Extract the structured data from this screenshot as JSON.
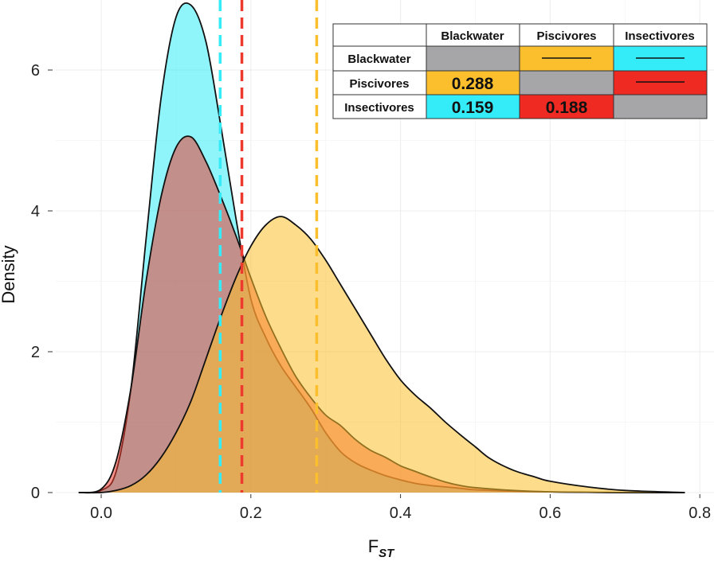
{
  "chart_data": {
    "type": "area",
    "xlabel_main": "F",
    "xlabel_sub": "ST",
    "ylabel": "Density",
    "xlim": [
      -0.04,
      0.8
    ],
    "ylim": [
      0,
      7
    ],
    "xticks": [
      0.0,
      0.2,
      0.4,
      0.6,
      0.8
    ],
    "xtick_labels": [
      "0.0",
      "0.2",
      "0.4",
      "0.6",
      "0.8"
    ],
    "yticks": [
      0,
      2,
      4,
      6
    ],
    "ytick_labels": [
      "0",
      "2",
      "4",
      "6"
    ],
    "grid": true,
    "series": [
      {
        "name": "Blackwater-Insectivores",
        "color": "#33ecf7",
        "mean": 0.159,
        "x": [
          -0.03,
          0.0,
          0.02,
          0.04,
          0.06,
          0.08,
          0.1,
          0.12,
          0.14,
          0.16,
          0.18,
          0.2,
          0.22,
          0.24,
          0.26,
          0.28,
          0.3,
          0.32,
          0.34,
          0.36,
          0.38,
          0.4,
          0.42,
          0.44,
          0.46,
          0.48,
          0.5,
          0.55,
          0.6,
          0.65,
          0.7,
          0.78
        ],
        "y": [
          0.0,
          0.03,
          0.3,
          1.5,
          3.6,
          5.6,
          6.75,
          6.92,
          6.4,
          5.2,
          3.9,
          2.75,
          2.2,
          1.8,
          1.5,
          1.2,
          0.85,
          0.58,
          0.42,
          0.32,
          0.24,
          0.18,
          0.13,
          0.1,
          0.08,
          0.06,
          0.04,
          0.02,
          0.01,
          0.005,
          0.0,
          0.0
        ]
      },
      {
        "name": "Piscivores-Insectivores",
        "color": "#ee3a2e",
        "mean": 0.188,
        "x": [
          -0.03,
          0.0,
          0.02,
          0.04,
          0.06,
          0.08,
          0.1,
          0.12,
          0.14,
          0.16,
          0.18,
          0.2,
          0.22,
          0.24,
          0.26,
          0.28,
          0.3,
          0.32,
          0.34,
          0.36,
          0.38,
          0.4,
          0.42,
          0.44,
          0.46,
          0.48,
          0.5,
          0.55,
          0.6,
          0.65,
          0.7,
          0.78
        ],
        "y": [
          0.0,
          0.05,
          0.45,
          1.5,
          3.0,
          4.2,
          4.9,
          5.05,
          4.7,
          4.2,
          3.65,
          3.05,
          2.5,
          2.05,
          1.65,
          1.35,
          1.1,
          0.95,
          0.75,
          0.6,
          0.5,
          0.38,
          0.3,
          0.22,
          0.15,
          0.1,
          0.07,
          0.03,
          0.01,
          0.005,
          0.0,
          0.0
        ]
      },
      {
        "name": "Blackwater-Piscivores",
        "color": "#fbbf2e",
        "mean": 0.288,
        "x": [
          -0.03,
          0.0,
          0.02,
          0.04,
          0.06,
          0.08,
          0.1,
          0.12,
          0.14,
          0.16,
          0.18,
          0.2,
          0.22,
          0.24,
          0.26,
          0.28,
          0.3,
          0.32,
          0.34,
          0.36,
          0.38,
          0.4,
          0.42,
          0.44,
          0.46,
          0.48,
          0.5,
          0.52,
          0.55,
          0.58,
          0.6,
          0.65,
          0.7,
          0.78
        ],
        "y": [
          0.0,
          0.0,
          0.03,
          0.1,
          0.25,
          0.5,
          0.85,
          1.3,
          1.9,
          2.5,
          3.05,
          3.5,
          3.8,
          3.92,
          3.8,
          3.6,
          3.3,
          2.95,
          2.6,
          2.25,
          1.9,
          1.6,
          1.38,
          1.2,
          1.0,
          0.82,
          0.65,
          0.48,
          0.32,
          0.22,
          0.16,
          0.08,
          0.03,
          0.0
        ]
      }
    ],
    "vlines": [
      {
        "x": 0.159,
        "color": "#33ecf7"
      },
      {
        "x": 0.188,
        "color": "#ee3a2e"
      },
      {
        "x": 0.288,
        "color": "#fbbf2e"
      }
    ],
    "inset_table": {
      "columns": [
        "Blackwater",
        "Piscivores",
        "Insectivores"
      ],
      "rows": [
        "Blackwater",
        "Piscivores",
        "Insectivores"
      ],
      "values": {
        "piscivores_blackwater": "0.288",
        "insectivores_blackwater": "0.159",
        "insectivores_piscivores": "0.188"
      },
      "colors": {
        "gray": "#a6a6a8",
        "orange": "#fbbf2e",
        "cyan": "#33ecf7",
        "red": "#ee2a22"
      }
    }
  }
}
